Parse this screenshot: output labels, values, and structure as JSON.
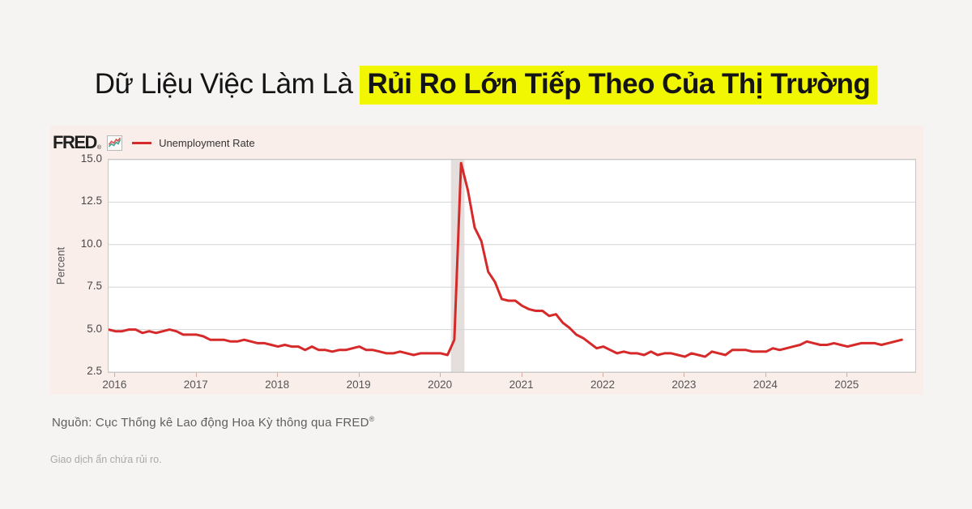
{
  "page": {
    "background": "#f5f4f3"
  },
  "title": {
    "plain": "Dữ Liệu Việc Làm Là",
    "highlight": "Rủi Ro Lớn Tiếp Theo Của Thị Trường",
    "highlight_color": "#f1f601"
  },
  "chart_card": {
    "brand": "FRED",
    "brand_reg": "®",
    "background": "#faeeeb"
  },
  "chart_data": {
    "type": "line",
    "series_name": "Unemployment Rate",
    "ylabel": "Percent",
    "ylim": [
      2.5,
      15.0
    ],
    "ytick_values": [
      15.0,
      12.5,
      10.0,
      7.5,
      5.0,
      2.5
    ],
    "ytick_labels": [
      "15.0",
      "12.5",
      "10.0",
      "7.5",
      "5.0",
      "2.5"
    ],
    "x_start_month": "2015-12",
    "x_end_month": "2025-09",
    "months_total": 120,
    "first_tick_month_index": 1,
    "year_tick_labels": [
      "2016",
      "2017",
      "2018",
      "2019",
      "2020",
      "2021",
      "2022",
      "2023",
      "2024",
      "2025"
    ],
    "values": [
      5.0,
      4.9,
      4.9,
      5.0,
      5.0,
      4.8,
      4.9,
      4.8,
      4.9,
      5.0,
      4.9,
      4.7,
      4.7,
      4.7,
      4.6,
      4.4,
      4.4,
      4.4,
      4.3,
      4.3,
      4.4,
      4.3,
      4.2,
      4.2,
      4.1,
      4.0,
      4.1,
      4.0,
      4.0,
      3.8,
      4.0,
      3.8,
      3.8,
      3.7,
      3.8,
      3.8,
      3.9,
      4.0,
      3.8,
      3.8,
      3.7,
      3.6,
      3.6,
      3.7,
      3.6,
      3.5,
      3.6,
      3.6,
      3.6,
      3.6,
      3.5,
      4.4,
      14.8,
      13.2,
      11.0,
      10.2,
      8.4,
      7.8,
      6.8,
      6.7,
      6.7,
      6.4,
      6.2,
      6.1,
      6.1,
      5.8,
      5.9,
      5.4,
      5.1,
      4.7,
      4.5,
      4.2,
      3.9,
      4.0,
      3.8,
      3.6,
      3.7,
      3.6,
      3.6,
      3.5,
      3.7,
      3.5,
      3.6,
      3.6,
      3.5,
      3.4,
      3.6,
      3.5,
      3.4,
      3.7,
      3.6,
      3.5,
      3.8,
      3.8,
      3.8,
      3.7,
      3.7,
      3.7,
      3.9,
      3.8,
      3.9,
      4.0,
      4.1,
      4.3,
      4.2,
      4.1,
      4.1,
      4.2,
      4.1,
      4.0,
      4.1,
      4.2,
      4.2,
      4.2,
      4.1,
      4.2,
      4.3,
      4.4
    ],
    "recession_band": {
      "from": 50.5,
      "to": 52.5,
      "color": "#e4dedc"
    },
    "line_color": "#d62a2a",
    "grid_color": "#d4d4d4",
    "grid": true,
    "legend_position": "top-left"
  },
  "footer": {
    "source": "Nguồn: Cục Thống kê Lao động Hoa Kỳ thông qua FRED",
    "source_reg": "®",
    "disclaimer": "Giao dịch ẩn chứa rủi ro."
  }
}
